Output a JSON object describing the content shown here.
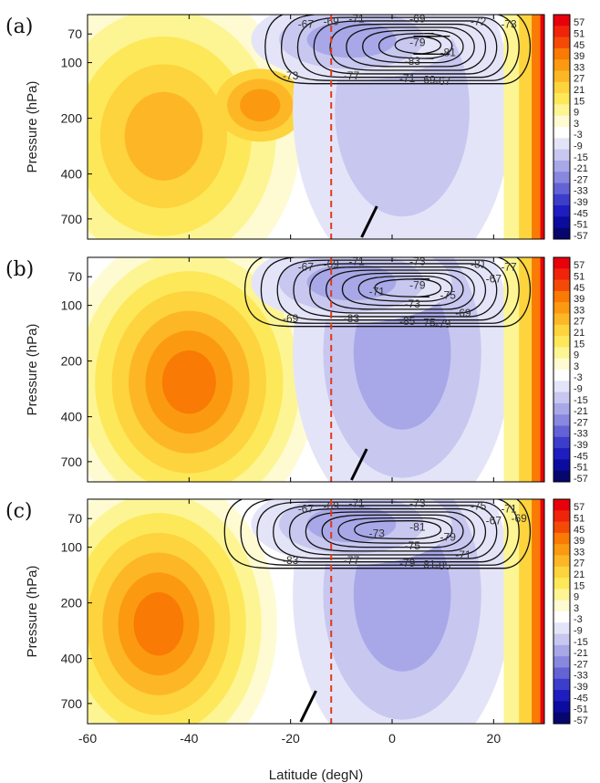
{
  "chart_data": [
    {
      "type": "heatmap",
      "panel_label": "(a)",
      "ylabel": "Pressure (hPa)",
      "xlabel": "",
      "y_ticks": [
        "70",
        "100",
        "200",
        "400",
        "700"
      ],
      "y_tick_values": [
        70,
        100,
        200,
        400,
        700
      ],
      "y_scale": "log",
      "x_ticks": [],
      "xlim": [
        -60,
        30
      ],
      "vertical_dashed_line_lat": -12,
      "contour_labels": [
        "-67",
        "-69",
        "-71",
        "-69",
        "-72",
        "-73",
        "-79",
        "-81",
        "-83",
        "-73",
        "-77",
        "-71",
        "-69",
        "-67"
      ],
      "colorbar_ticks": [
        "57",
        "51",
        "45",
        "39",
        "33",
        "27",
        "21",
        "15",
        "9",
        "3",
        "-3",
        "-9",
        "-15",
        "-21",
        "-27",
        "-33",
        "-39",
        "-45",
        "-51",
        "-57"
      ]
    },
    {
      "type": "heatmap",
      "panel_label": "(b)",
      "ylabel": "Pressure (hPa)",
      "xlabel": "",
      "y_ticks": [
        "70",
        "100",
        "200",
        "400",
        "700"
      ],
      "y_tick_values": [
        70,
        100,
        200,
        400,
        700
      ],
      "y_scale": "log",
      "x_ticks": [],
      "xlim": [
        -60,
        30
      ],
      "vertical_dashed_line_lat": -12,
      "contour_labels": [
        "-67",
        "-69",
        "-71",
        "-73",
        "-81",
        "-77",
        "-79",
        "-75",
        "-73",
        "-69",
        "-83",
        "-85",
        "-75",
        "-79",
        "-71",
        "-69",
        "-67"
      ],
      "colorbar_ticks": [
        "57",
        "51",
        "45",
        "39",
        "33",
        "27",
        "21",
        "15",
        "9",
        "3",
        "-3",
        "-9",
        "-15",
        "-21",
        "-27",
        "-33",
        "-39",
        "-45",
        "-51",
        "-57"
      ]
    },
    {
      "type": "heatmap",
      "panel_label": "(c)",
      "ylabel": "Pressure (hPa)",
      "xlabel": "Latitude (degN)",
      "y_ticks": [
        "70",
        "100",
        "200",
        "400",
        "700"
      ],
      "y_tick_values": [
        70,
        100,
        200,
        400,
        700
      ],
      "y_scale": "log",
      "x_ticks": [
        "-60",
        "-40",
        "-20",
        "0",
        "20"
      ],
      "x_tick_values": [
        -60,
        -40,
        -20,
        0,
        20
      ],
      "xlim": [
        -60,
        30
      ],
      "vertical_dashed_line_lat": -12,
      "contour_labels": [
        "-67",
        "-69",
        "-71",
        "-73",
        "-75",
        "-71",
        "-81",
        "-79",
        "-75",
        "-83",
        "-77",
        "-79",
        "-81",
        "-85",
        "-73",
        "-71",
        "-67",
        "-69"
      ],
      "colorbar_ticks": [
        "57",
        "51",
        "45",
        "39",
        "33",
        "27",
        "21",
        "15",
        "9",
        "3",
        "-3",
        "-9",
        "-15",
        "-21",
        "-27",
        "-33",
        "-39",
        "-45",
        "-51",
        "-57"
      ]
    }
  ],
  "colors": {
    "colorbar": [
      "#e8000b",
      "#f0240a",
      "#f54a07",
      "#f97a05",
      "#fb9a10",
      "#fdb726",
      "#fdd43d",
      "#fde85a",
      "#fdf594",
      "#fefbd2",
      "#ffffff",
      "#e4e4f8",
      "#c7c7f0",
      "#a8a8e8",
      "#8888e0",
      "#6363d6",
      "#3d3dcc",
      "#1d1dc0",
      "#0b0ba0",
      "#06066e"
    ],
    "dashed_line": "#e23a1b",
    "contour": "#111111"
  }
}
